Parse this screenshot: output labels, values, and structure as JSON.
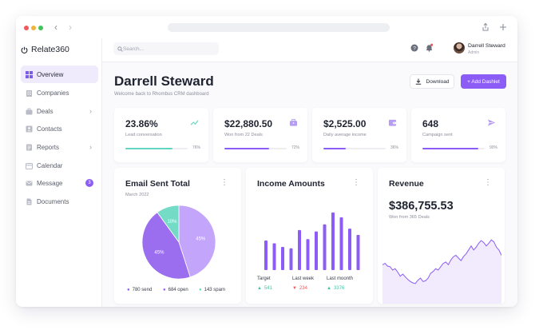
{
  "window": {
    "dots": [
      "#ef5a5a",
      "#f2b33d",
      "#45c35a"
    ]
  },
  "brand": {
    "name": "Relate360"
  },
  "sidebar": {
    "items": [
      {
        "label": "Overview",
        "icon": "grid-icon",
        "active": true
      },
      {
        "label": "Companies",
        "icon": "building-icon"
      },
      {
        "label": "Deals",
        "icon": "briefcase-icon",
        "chevron": true
      },
      {
        "label": "Contacts",
        "icon": "contact-card-icon"
      },
      {
        "label": "Reports",
        "icon": "report-icon",
        "chevron": true
      },
      {
        "label": "Calendar",
        "icon": "calendar-icon"
      },
      {
        "label": "Message",
        "icon": "mail-icon",
        "badge": "3"
      },
      {
        "label": "Documents",
        "icon": "document-icon"
      }
    ]
  },
  "topbar": {
    "search_placeholder": "Search...",
    "user": {
      "name": "Darrell Steward",
      "role": "Admin"
    }
  },
  "header": {
    "title": "Darrell Steward",
    "subtitle": "Welcome back to Rhombus CRM dashboard",
    "download_label": "Download",
    "add_label": "+ Add Dashlet"
  },
  "stats": [
    {
      "value": "23.86%",
      "label": "Lead conversation",
      "progress": 0.76,
      "pct": "76%",
      "color": "#5ed6c0",
      "icon": "trend-up-icon"
    },
    {
      "value": "$22,880.50",
      "label": "Won from 22 Deals",
      "progress": 0.72,
      "pct": "72%",
      "color": "#8b5cf6",
      "icon": "briefcase-icon"
    },
    {
      "value": "$2,525.00",
      "label": "Daily average income",
      "progress": 0.36,
      "pct": "36%",
      "color": "#8b5cf6",
      "icon": "wallet-icon"
    },
    {
      "value": "648",
      "label": "Campaign sent",
      "progress": 0.9,
      "pct": "90%",
      "color": "#8b5cf6",
      "icon": "send-icon"
    }
  ],
  "email_card": {
    "title": "Email Sent Total",
    "subtitle": "March 2022",
    "legend": [
      {
        "text": "780 send",
        "color": "#8b5cf6"
      },
      {
        "text": "684 open",
        "color": "#8b5cf6"
      },
      {
        "text": "143 spam",
        "color": "#5ed6c0"
      }
    ]
  },
  "income_card": {
    "title": "Income Amounts",
    "footer": [
      {
        "label": "Target",
        "value": "541",
        "dir": "up",
        "color": "#3fc7a7"
      },
      {
        "label": "Last week",
        "value": "234",
        "dir": "down",
        "color": "#ef5a5a"
      },
      {
        "label": "Last moonth",
        "value": "3376",
        "dir": "up",
        "color": "#3fc7a7"
      }
    ]
  },
  "revenue_card": {
    "title": "Revenue",
    "value": "$386,755.53",
    "subtitle": "Won from 365 Deals"
  },
  "chart_data": [
    {
      "type": "pie",
      "title": "Email Sent Total",
      "categories": [
        "",
        "",
        ""
      ],
      "values": [
        45,
        45,
        10
      ],
      "labels": [
        "45%",
        "45%",
        "10%"
      ],
      "colors": [
        "#c3a6fb",
        "#9b6ef0",
        "#74dbc6"
      ]
    },
    {
      "type": "bar",
      "title": "Income Amounts",
      "values": [
        42,
        38,
        33,
        31,
        57,
        44,
        55,
        65,
        82,
        75,
        59,
        50
      ],
      "ylim": [
        0,
        100
      ],
      "grid": false,
      "color": "#8b5cf6"
    },
    {
      "type": "area",
      "title": "Revenue",
      "values": [
        58,
        60,
        56,
        55,
        50,
        52,
        47,
        41,
        44,
        40,
        36,
        33,
        31,
        30,
        35,
        38,
        33,
        34,
        38,
        45,
        48,
        52,
        50,
        55,
        60,
        62,
        58,
        65,
        70,
        72,
        68,
        64,
        70,
        74,
        80,
        86,
        80,
        84,
        90,
        94,
        91,
        86,
        90,
        95,
        92,
        84,
        80,
        72
      ],
      "ylim": [
        0,
        100
      ],
      "grid": false,
      "color": "#8b5cf6",
      "fill": "#f1ebfd"
    }
  ]
}
